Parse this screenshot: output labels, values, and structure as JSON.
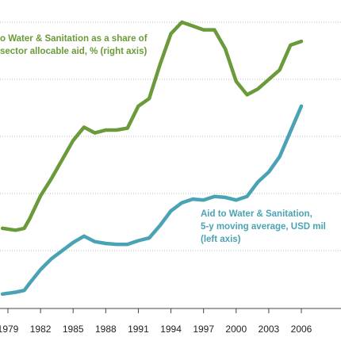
{
  "chart_data": {
    "type": "line",
    "x_ticks": [
      "1979",
      "1982",
      "1985",
      "1988",
      "1991",
      "1994",
      "1997",
      "2000",
      "2003",
      "2006"
    ],
    "xlim": [
      1979,
      2006.5
    ],
    "series": [
      {
        "axis": "right",
        "color": "#6a9a3a",
        "x": [
          1978.5,
          1979.7,
          1980.5,
          1981.0,
          1982.0,
          1983.0,
          1984.0,
          1985.0,
          1986.0,
          1987.0,
          1988.0,
          1989.0,
          1990.0,
          1991.0,
          1992.0,
          1993.0,
          1994.0,
          1995.0,
          1996.0,
          1997.0,
          1998.0,
          1999.0,
          2000.0,
          2001.0,
          2002.0,
          2003.0,
          2004.0,
          2005.0,
          2006.0
        ],
        "y": [
          6.2,
          6.1,
          6.2,
          6.7,
          7.9,
          8.8,
          9.8,
          10.8,
          11.5,
          11.2,
          11.35,
          11.35,
          11.45,
          12.6,
          13.0,
          14.8,
          16.4,
          17.0,
          16.8,
          16.6,
          16.6,
          15.6,
          13.9,
          13.2,
          13.5,
          14.0,
          14.5,
          15.8,
          16.0
        ]
      },
      {
        "axis": "left",
        "color": "#4aa3b4",
        "x": [
          1978.5,
          1979.7,
          1980.5,
          1981.0,
          1982.0,
          1983.0,
          1984.0,
          1985.0,
          1986.0,
          1987.0,
          1988.0,
          1989.0,
          1990.0,
          1991.0,
          1992.0,
          1993.0,
          1994.0,
          1995.0,
          1996.0,
          1997.0,
          1998.0,
          1999.0,
          2000.0,
          2001.0,
          2002.0,
          2003.0,
          2004.0,
          2005.0,
          2006.0
        ],
        "y": [
          1.2,
          1.3,
          1.4,
          1.8,
          2.55,
          3.15,
          3.6,
          4.05,
          4.4,
          4.1,
          4.0,
          3.95,
          3.95,
          4.15,
          4.3,
          5.0,
          5.8,
          6.25,
          6.45,
          6.4,
          6.6,
          6.55,
          6.4,
          6.6,
          7.4,
          7.95,
          8.8,
          10.2,
          11.6
        ]
      }
    ],
    "annotations": {
      "green_line_1": "o Water & Sanitation  as a share of",
      "green_line_2": "sector allocable aid, % (right axis)",
      "blue_line_1": "Aid to Water & Sanitation,",
      "blue_line_2": "5-y moving average, USD mil",
      "blue_line_3": "(left axis)"
    },
    "colors": {
      "green": "#6a9a3a",
      "blue": "#4aa3b4",
      "gridline": "#bdbdbd"
    },
    "grid": "horizontal gridlines",
    "legend": "none (direct labels)"
  }
}
